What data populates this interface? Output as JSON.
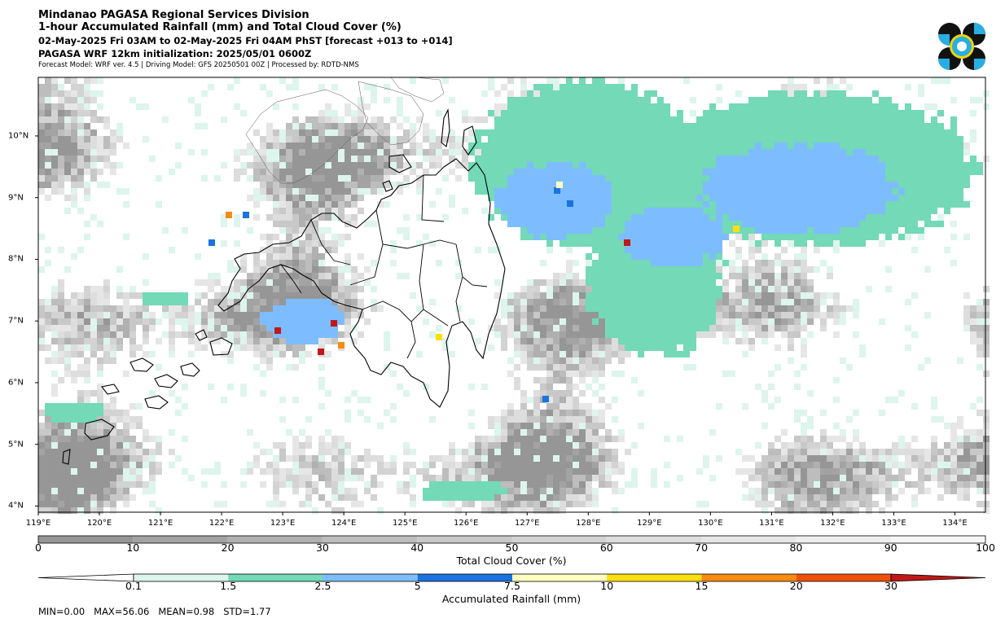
{
  "header": {
    "line1": "Mindanao PAGASA Regional Services Division",
    "line2": "1-hour Accumulated Rainfall (mm) and Total Cloud Cover (%)",
    "line3": "02-May-2025 Fri 03AM to 02-May-2025 Fri 04AM PhST [forecast +013 to +014]",
    "line4": "PAGASA WRF 12km initialization: 2025/05/01 0600Z",
    "line5": "Forecast Model: WRF ver. 4.5 | Driving Model: GFS 20250501 00Z | Processed by: RDTD-NMS"
  },
  "logo": {
    "icon": "pagasa-logo-icon",
    "colors": [
      "#111111",
      "#29aee3",
      "#f2d500"
    ]
  },
  "map": {
    "lon_labels": [
      "119°E",
      "120°E",
      "121°E",
      "122°E",
      "123°E",
      "124°E",
      "125°E",
      "126°E",
      "127°E",
      "128°E",
      "129°E",
      "130°E",
      "131°E",
      "132°E",
      "133°E",
      "134°E"
    ],
    "lat_labels": [
      "10°N",
      "9°N",
      "8°N",
      "7°N",
      "6°N",
      "5°N",
      "4°N"
    ],
    "lon_range": [
      119,
      134.5
    ],
    "lat_range": [
      3.9,
      10.95
    ],
    "ocean_color": "#ffffff"
  },
  "cloud_colorbar": {
    "label": "Total Cloud Cover (%)",
    "ticks": [
      "0",
      "10",
      "20",
      "30",
      "40",
      "50",
      "60",
      "70",
      "80",
      "90",
      "100"
    ],
    "colors": [
      "#969696",
      "#a3a3a3",
      "#b0b0b0",
      "#bdbdbd",
      "#c8c8c8",
      "#d3d3d3",
      "#dddddd",
      "#e6e6e6",
      "#eeeeee",
      "#f6f6f6"
    ]
  },
  "rain_colorbar": {
    "label": "Accumulated Rainfall (mm)",
    "ticks": [
      "0.1",
      "1.5",
      "2.5",
      "5",
      "7.5",
      "10",
      "15",
      "20",
      "30"
    ],
    "colors": [
      "#ddf5ec",
      "#73d9b7",
      "#7dbdff",
      "#1a73e0",
      "#ffffc0",
      "#ffdf10",
      "#f88b12",
      "#f0500a",
      "#c01818"
    ],
    "extend_min_color": "#ffffff",
    "extend_max_color": "#c01818"
  },
  "stats": {
    "min_label": "MIN=0.00",
    "max_label": "MAX=56.06",
    "mean_label": "MEAN=0.98",
    "std_label": "STD=1.77"
  }
}
